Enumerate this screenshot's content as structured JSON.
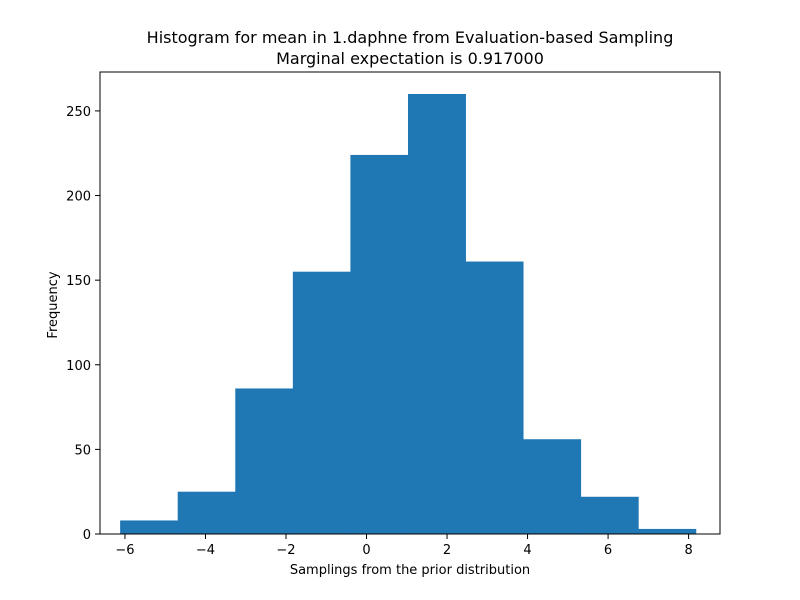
{
  "chart_data": {
    "type": "bar",
    "title": "Histogram for mean in 1.daphne from Evaluation-based Sampling",
    "subtitle": "Marginal expectation is 0.917000",
    "xlabel": "Samplings from the prior distribution",
    "ylabel": "Frequency",
    "xlim": [
      -6.62,
      8.78
    ],
    "ylim": [
      0,
      273
    ],
    "xticks": [
      -6,
      -4,
      -2,
      0,
      2,
      4,
      6,
      8
    ],
    "xtick_labels": [
      "−6",
      "−4",
      "−2",
      "0",
      "2",
      "4",
      "6",
      "8"
    ],
    "yticks": [
      0,
      50,
      100,
      150,
      200,
      250
    ],
    "ytick_labels": [
      "0",
      "50",
      "100",
      "150",
      "200",
      "250"
    ],
    "grid": false,
    "bar_color": "#1f77b4",
    "bins": [
      {
        "start": -6.12,
        "end": -4.69,
        "value": 8
      },
      {
        "start": -4.69,
        "end": -3.26,
        "value": 25
      },
      {
        "start": -3.26,
        "end": -1.83,
        "value": 86
      },
      {
        "start": -1.83,
        "end": -0.4,
        "value": 155
      },
      {
        "start": -0.4,
        "end": 1.03,
        "value": 224
      },
      {
        "start": 1.03,
        "end": 2.46,
        "value": 260
      },
      {
        "start": 2.46,
        "end": 3.89,
        "value": 161
      },
      {
        "start": 3.89,
        "end": 5.32,
        "value": 56
      },
      {
        "start": 5.32,
        "end": 6.75,
        "value": 22
      },
      {
        "start": 6.75,
        "end": 8.18,
        "value": 3
      }
    ]
  }
}
